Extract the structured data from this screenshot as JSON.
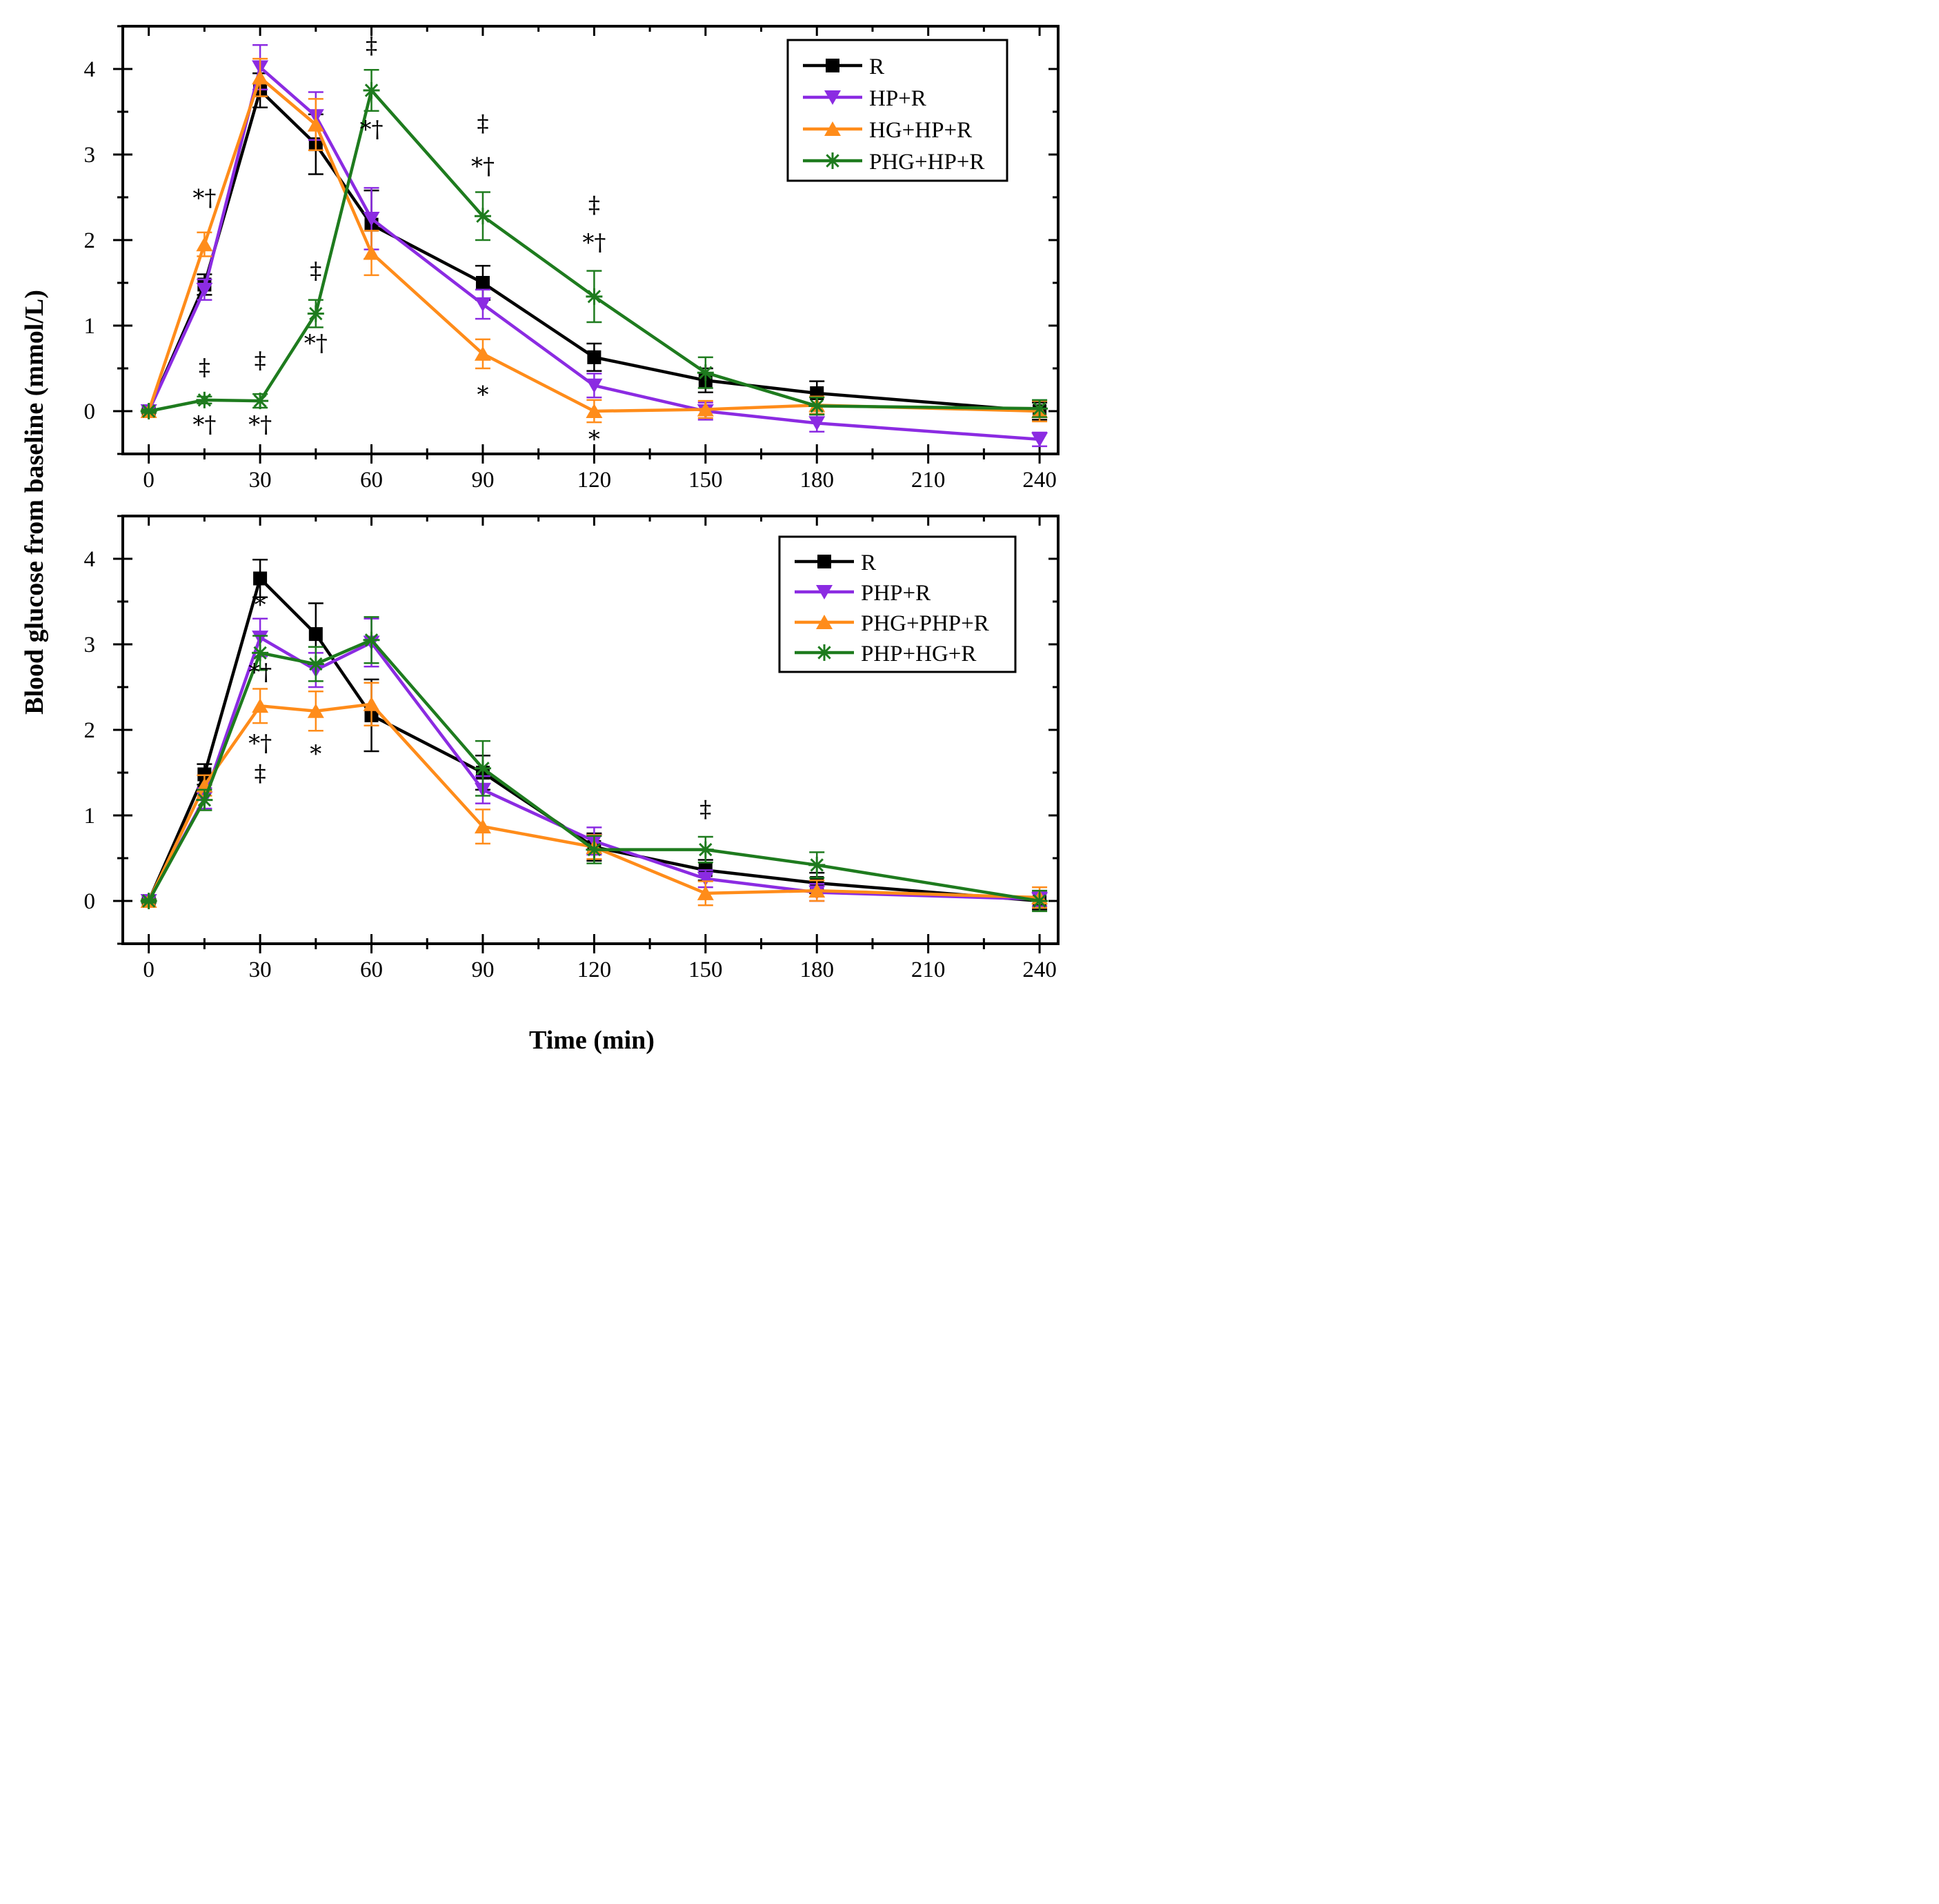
{
  "chart_data": [
    {
      "type": "line",
      "panel": "top",
      "x": [
        0,
        15,
        30,
        45,
        60,
        90,
        120,
        150,
        180,
        240
      ],
      "xticks": [
        "0",
        "30",
        "60",
        "90",
        "120",
        "150",
        "180",
        "210",
        "240"
      ],
      "yticks": [
        "0",
        "1",
        "2",
        "3",
        "4"
      ],
      "xlim": [
        -7,
        245
      ],
      "ylim": [
        -0.5,
        4.5
      ],
      "legend_position": "top-right",
      "series": [
        {
          "name": "R",
          "color": "#000000",
          "marker": "square",
          "values": [
            0,
            1.48,
            3.75,
            3.12,
            2.18,
            1.5,
            0.63,
            0.36,
            0.21,
            0.0
          ],
          "errors": [
            0.02,
            0.12,
            0.2,
            0.35,
            0.4,
            0.2,
            0.16,
            0.14,
            0.14,
            0.1
          ]
        },
        {
          "name": "HP+R",
          "color": "#8B2BE2",
          "marker": "triangle-down",
          "values": [
            0,
            1.42,
            4.02,
            3.45,
            2.25,
            1.25,
            0.3,
            0.0,
            -0.14,
            -0.33
          ],
          "errors": [
            0.02,
            0.12,
            0.26,
            0.28,
            0.36,
            0.17,
            0.14,
            0.1,
            0.1,
            0.08
          ]
        },
        {
          "name": "HG+HP+R",
          "color": "#FF8C1A",
          "marker": "triangle-up",
          "values": [
            0,
            1.95,
            3.9,
            3.35,
            1.85,
            0.67,
            0.0,
            0.02,
            0.07,
            0.0
          ],
          "errors": [
            0.02,
            0.14,
            0.22,
            0.3,
            0.26,
            0.17,
            0.13,
            0.1,
            0.1,
            0.12
          ]
        },
        {
          "name": "PHG+HP+R",
          "color": "#1E7B1E",
          "marker": "star",
          "values": [
            0,
            0.13,
            0.12,
            1.14,
            3.75,
            2.28,
            1.34,
            0.45,
            0.06,
            0.03
          ],
          "errors": [
            0.02,
            0.04,
            0.08,
            0.16,
            0.24,
            0.28,
            0.3,
            0.18,
            0.1,
            0.1
          ]
        }
      ],
      "annotations": [
        {
          "text": "*†",
          "x": 15,
          "y": 2.4
        },
        {
          "text": "‡",
          "x": 15,
          "y": 0.42
        },
        {
          "text": "*†",
          "x": 15,
          "y": -0.25
        },
        {
          "text": "‡",
          "x": 30,
          "y": 0.5
        },
        {
          "text": "*†",
          "x": 30,
          "y": -0.25
        },
        {
          "text": "‡",
          "x": 45,
          "y": 1.55
        },
        {
          "text": "*†",
          "x": 45,
          "y": 0.7
        },
        {
          "text": "‡",
          "x": 60,
          "y": 4.18
        },
        {
          "text": "*†",
          "x": 60,
          "y": 3.2
        },
        {
          "text": "‡",
          "x": 90,
          "y": 3.27
        },
        {
          "text": "*†",
          "x": 90,
          "y": 2.77
        },
        {
          "text": "*",
          "x": 90,
          "y": 0.1
        },
        {
          "text": "‡",
          "x": 120,
          "y": 2.32
        },
        {
          "text": "*†",
          "x": 120,
          "y": 1.88
        },
        {
          "text": "*",
          "x": 120,
          "y": -0.42
        }
      ]
    },
    {
      "type": "line",
      "panel": "bottom",
      "x": [
        0,
        15,
        30,
        45,
        60,
        90,
        120,
        150,
        180,
        240
      ],
      "xticks": [
        "0",
        "30",
        "60",
        "90",
        "120",
        "150",
        "180",
        "210",
        "240"
      ],
      "yticks": [
        "0",
        "1",
        "2",
        "3",
        "4"
      ],
      "xlim": [
        -7,
        245
      ],
      "ylim": [
        -0.5,
        4.5
      ],
      "xlabel": "Time (min)",
      "legend_position": "top-right",
      "series": [
        {
          "name": "R",
          "color": "#000000",
          "marker": "square",
          "values": [
            0,
            1.48,
            3.77,
            3.12,
            2.17,
            1.5,
            0.63,
            0.36,
            0.21,
            0.0
          ],
          "errors": [
            0.02,
            0.12,
            0.22,
            0.36,
            0.42,
            0.2,
            0.16,
            0.12,
            0.12,
            0.1
          ]
        },
        {
          "name": "PHP+R",
          "color": "#8B2BE2",
          "marker": "triangle-down",
          "values": [
            0,
            1.2,
            3.08,
            2.7,
            3.02,
            1.3,
            0.7,
            0.26,
            0.1,
            0.02
          ],
          "errors": [
            0.02,
            0.12,
            0.22,
            0.2,
            0.28,
            0.16,
            0.16,
            0.1,
            0.1,
            0.08
          ]
        },
        {
          "name": "PHG+PHP+R",
          "color": "#FF8C1A",
          "marker": "triangle-up",
          "values": [
            0,
            1.35,
            2.28,
            2.22,
            2.3,
            0.87,
            0.63,
            0.09,
            0.12,
            0.04
          ],
          "errors": [
            0.02,
            0.12,
            0.2,
            0.23,
            0.25,
            0.2,
            0.14,
            0.14,
            0.12,
            0.12
          ]
        },
        {
          "name": "PHP+HG+R",
          "color": "#1E7B1E",
          "marker": "star",
          "values": [
            0,
            1.18,
            2.9,
            2.77,
            3.05,
            1.55,
            0.6,
            0.6,
            0.42,
            0.0
          ],
          "errors": [
            0.02,
            0.12,
            0.2,
            0.2,
            0.27,
            0.32,
            0.16,
            0.15,
            0.15,
            0.12
          ]
        }
      ],
      "annotations": [
        {
          "text": "*",
          "x": 30,
          "y": 3.37
        },
        {
          "text": "*†",
          "x": 30,
          "y": 2.58
        },
        {
          "text": "*†",
          "x": 30,
          "y": 1.75
        },
        {
          "text": "‡",
          "x": 30,
          "y": 1.4
        },
        {
          "text": "*",
          "x": 45,
          "y": 1.63
        },
        {
          "text": "‡",
          "x": 150,
          "y": 0.98
        }
      ]
    }
  ],
  "ylabel": "Blood glucose from baseline (mmol/L)",
  "xlabel": "Time (min)"
}
